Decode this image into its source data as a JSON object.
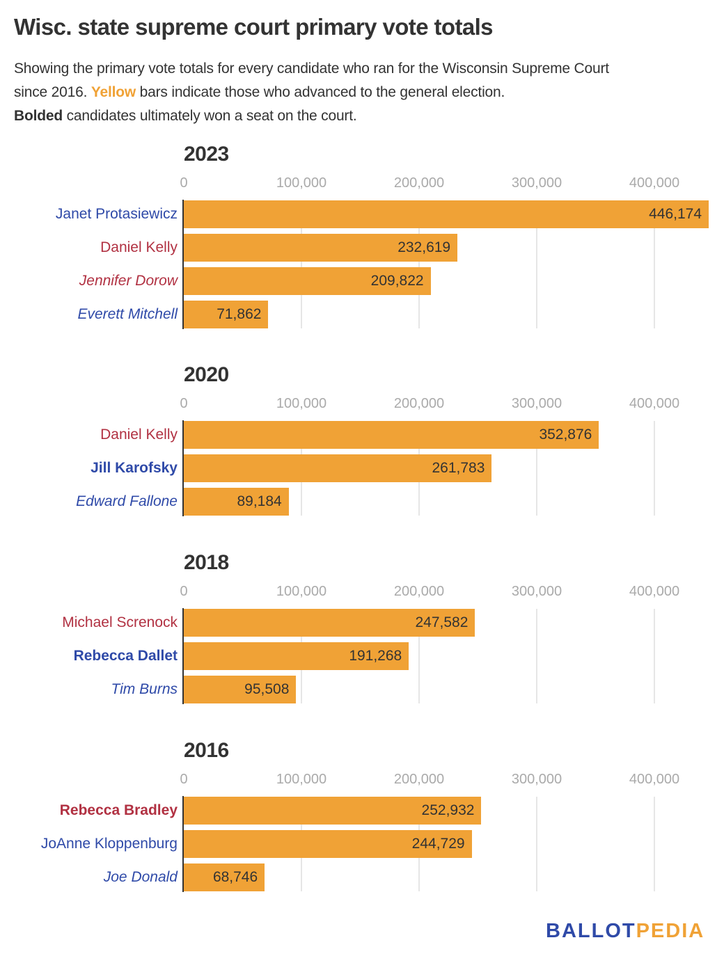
{
  "title": "Wisc. state supreme court primary vote totals",
  "subtitle": {
    "line1": "Showing the primary vote totals for every candidate who ran for the Wisconsin Supreme Court",
    "line2_before": "since 2016. ",
    "line2_highlight": "Yellow",
    "line2_after": " bars indicate those who advanced to the general election.",
    "line3_bold": "Bolded",
    "line3_after": " candidates ultimately won a seat on the court."
  },
  "colors": {
    "bar": "#f0a236",
    "democrat_label": "#2f4aa8",
    "republican_label": "#b13142",
    "gridline": "#e6e6e6",
    "tick_label": "#aaaaaa"
  },
  "logo": {
    "part1": "BALLOT",
    "part2": "PEDIA"
  },
  "chart_data": {
    "type": "bar",
    "orientation": "horizontal",
    "title": "Wisc. state supreme court primary vote totals",
    "xlabel": "",
    "ylabel": "",
    "xlim": [
      0,
      450000
    ],
    "ticks": [
      0,
      100000,
      200000,
      300000,
      400000
    ],
    "tick_labels": [
      "0",
      "100,000",
      "200,000",
      "300,000",
      "400,000"
    ],
    "grid": true,
    "panels": [
      {
        "year": "2023",
        "candidates": [
          {
            "name": "Janet Protasiewicz",
            "value": 446174,
            "label": "446,174",
            "party": "dem",
            "winner": false,
            "advanced": true
          },
          {
            "name": "Daniel Kelly",
            "value": 232619,
            "label": "232,619",
            "party": "rep",
            "winner": false,
            "advanced": true
          },
          {
            "name": "Jennifer Dorow",
            "value": 209822,
            "label": "209,822",
            "party": "rep",
            "winner": false,
            "advanced": false
          },
          {
            "name": "Everett Mitchell",
            "value": 71862,
            "label": "71,862",
            "party": "dem",
            "winner": false,
            "advanced": false
          }
        ]
      },
      {
        "year": "2020",
        "candidates": [
          {
            "name": "Daniel Kelly",
            "value": 352876,
            "label": "352,876",
            "party": "rep",
            "winner": false,
            "advanced": true
          },
          {
            "name": "Jill Karofsky",
            "value": 261783,
            "label": "261,783",
            "party": "dem",
            "winner": true,
            "advanced": true
          },
          {
            "name": "Edward Fallone",
            "value": 89184,
            "label": "89,184",
            "party": "dem",
            "winner": false,
            "advanced": false
          }
        ]
      },
      {
        "year": "2018",
        "candidates": [
          {
            "name": "Michael Screnock",
            "value": 247582,
            "label": "247,582",
            "party": "rep",
            "winner": false,
            "advanced": true
          },
          {
            "name": "Rebecca Dallet",
            "value": 191268,
            "label": "191,268",
            "party": "dem",
            "winner": true,
            "advanced": true
          },
          {
            "name": "Tim Burns",
            "value": 95508,
            "label": "95,508",
            "party": "dem",
            "winner": false,
            "advanced": false
          }
        ]
      },
      {
        "year": "2016",
        "candidates": [
          {
            "name": "Rebecca Bradley",
            "value": 252932,
            "label": "252,932",
            "party": "rep",
            "winner": true,
            "advanced": true
          },
          {
            "name": "JoAnne Kloppenburg",
            "value": 244729,
            "label": "244,729",
            "party": "dem",
            "winner": false,
            "advanced": true
          },
          {
            "name": "Joe Donald",
            "value": 68746,
            "label": "68,746",
            "party": "dem",
            "winner": false,
            "advanced": false
          }
        ]
      }
    ]
  }
}
